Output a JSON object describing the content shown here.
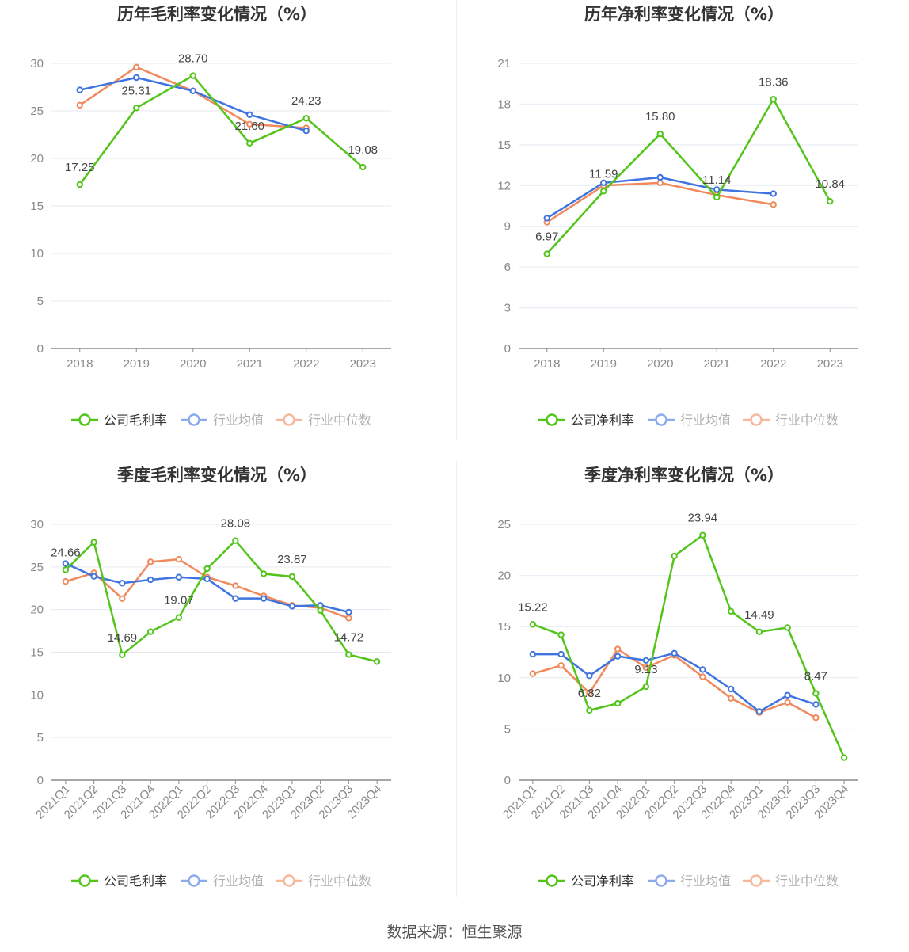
{
  "source": "数据来源：恒生聚源",
  "colors": {
    "company": "#52c41a",
    "industry_avg": "#3f74e0",
    "industry_median": "#f08a5d"
  },
  "chart_data": [
    {
      "type": "line",
      "title": "历年毛利率变化情况（%）",
      "categories": [
        "2018",
        "2019",
        "2020",
        "2021",
        "2022",
        "2023"
      ],
      "ylim": [
        0,
        30
      ],
      "yticks": [
        0,
        5,
        10,
        15,
        20,
        25,
        30
      ],
      "grid": true,
      "legend_position": "bottom",
      "series": [
        {
          "name": "公司毛利率",
          "values": [
            17.25,
            25.31,
            28.7,
            21.6,
            24.23,
            19.08
          ],
          "labels": [
            "17.25",
            "25.31",
            "28.70",
            "21.60",
            "24.23",
            "19.08"
          ]
        },
        {
          "name": "行业均值",
          "values": [
            27.2,
            28.5,
            27.1,
            24.6,
            22.9,
            null
          ]
        },
        {
          "name": "行业中位数",
          "values": [
            25.6,
            29.6,
            27.1,
            23.6,
            23.2,
            null
          ]
        }
      ]
    },
    {
      "type": "line",
      "title": "历年净利率变化情况（%）",
      "categories": [
        "2018",
        "2019",
        "2020",
        "2021",
        "2022",
        "2023"
      ],
      "ylim": [
        0,
        21
      ],
      "yticks": [
        0,
        3,
        6,
        9,
        12,
        15,
        18,
        21
      ],
      "grid": true,
      "legend_position": "bottom",
      "series": [
        {
          "name": "公司净利率",
          "values": [
            6.97,
            11.59,
            15.8,
            11.14,
            18.36,
            10.84
          ],
          "labels": [
            "6.97",
            "11.59",
            "15.80",
            "11.14",
            "18.36",
            "10.84"
          ]
        },
        {
          "name": "行业均值",
          "values": [
            9.6,
            12.2,
            12.6,
            11.7,
            11.4,
            null
          ]
        },
        {
          "name": "行业中位数",
          "values": [
            9.3,
            12.0,
            12.2,
            11.3,
            10.6,
            null
          ]
        }
      ]
    },
    {
      "type": "line",
      "title": "季度毛利率变化情况（%）",
      "categories": [
        "2021Q1",
        "2021Q2",
        "2021Q3",
        "2021Q4",
        "2022Q1",
        "2022Q2",
        "2022Q3",
        "2022Q4",
        "2023Q1",
        "2023Q2",
        "2023Q3",
        "2023Q4"
      ],
      "ylim": [
        0,
        30
      ],
      "yticks": [
        0,
        5,
        10,
        15,
        20,
        25,
        30
      ],
      "grid": true,
      "legend_position": "bottom",
      "series": [
        {
          "name": "公司毛利率",
          "values": [
            24.66,
            27.9,
            14.69,
            17.4,
            19.07,
            24.8,
            28.08,
            24.2,
            23.87,
            19.9,
            14.72,
            13.9
          ],
          "labels": [
            "24.66",
            "",
            "14.69",
            "",
            "19.07",
            "",
            "28.08",
            "",
            "23.87",
            "",
            "14.72",
            ""
          ]
        },
        {
          "name": "行业均值",
          "values": [
            25.4,
            23.9,
            23.1,
            23.5,
            23.8,
            23.6,
            21.3,
            21.3,
            20.4,
            20.5,
            19.7,
            null
          ]
        },
        {
          "name": "行业中位数",
          "values": [
            23.3,
            24.3,
            21.3,
            25.6,
            25.9,
            23.8,
            22.8,
            21.6,
            20.5,
            20.2,
            19.0,
            null
          ]
        }
      ]
    },
    {
      "type": "line",
      "title": "季度净利率变化情况（%）",
      "categories": [
        "2021Q1",
        "2021Q2",
        "2021Q3",
        "2021Q4",
        "2022Q1",
        "2022Q2",
        "2022Q3",
        "2022Q4",
        "2023Q1",
        "2023Q2",
        "2023Q3",
        "2023Q4"
      ],
      "ylim": [
        0,
        25
      ],
      "yticks": [
        0,
        5,
        10,
        15,
        20,
        25
      ],
      "grid": true,
      "legend_position": "bottom",
      "series": [
        {
          "name": "公司净利率",
          "values": [
            15.22,
            14.2,
            6.82,
            7.5,
            9.13,
            21.9,
            23.94,
            16.5,
            14.49,
            14.9,
            8.47,
            2.2
          ],
          "labels": [
            "15.22",
            "",
            "6.82",
            "",
            "9.13",
            "",
            "23.94",
            "",
            "14.49",
            "",
            "8.47",
            ""
          ]
        },
        {
          "name": "行业均值",
          "values": [
            12.3,
            12.3,
            10.2,
            12.1,
            11.7,
            12.4,
            10.8,
            8.9,
            6.7,
            8.3,
            7.4,
            null
          ]
        },
        {
          "name": "行业中位数",
          "values": [
            10.4,
            11.2,
            8.5,
            12.8,
            11.0,
            12.2,
            10.1,
            8.0,
            6.6,
            7.6,
            6.1,
            null
          ]
        }
      ]
    }
  ]
}
